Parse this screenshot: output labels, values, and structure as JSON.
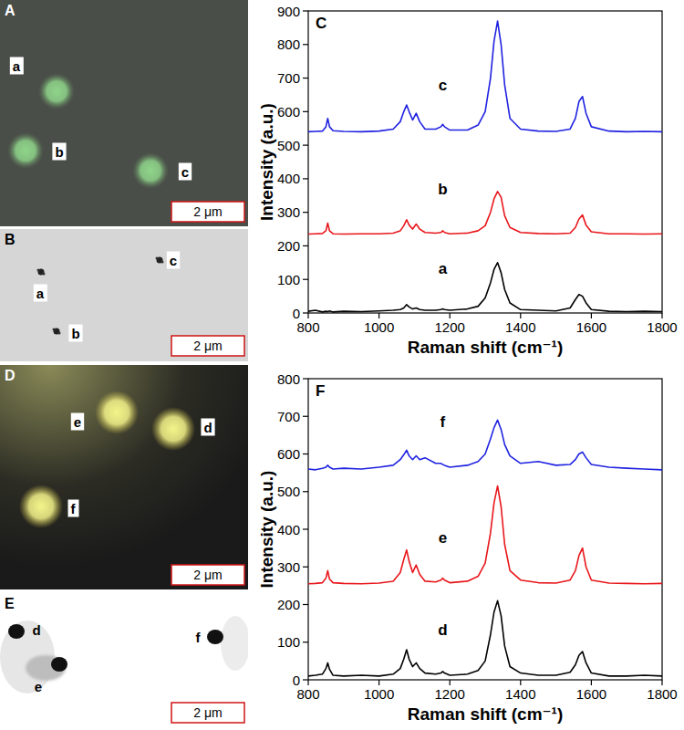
{
  "micrographs": [
    {
      "letter": "A",
      "labels": [
        "a",
        "b",
        "c"
      ],
      "scale_bar": "2 μm"
    },
    {
      "letter": "B",
      "labels": [
        "a",
        "b",
        "c"
      ],
      "scale_bar": "2 μm"
    },
    {
      "letter": "D",
      "labels": [
        "d",
        "e",
        "f"
      ],
      "scale_bar": "2 μm"
    },
    {
      "letter": "E",
      "labels": [
        "d",
        "e",
        "f"
      ],
      "scale_bar": "2 μm"
    }
  ],
  "chart_data": [
    {
      "type": "line",
      "title": "C",
      "x_label": "Raman shift (cm⁻¹)",
      "y_label": "Intensity (a.u.)",
      "x": [
        800,
        820,
        840,
        850,
        855,
        860,
        870,
        900,
        950,
        1000,
        1040,
        1060,
        1070,
        1078,
        1085,
        1095,
        1105,
        1115,
        1130,
        1160,
        1175,
        1180,
        1185,
        1200,
        1250,
        1280,
        1300,
        1315,
        1325,
        1335,
        1345,
        1355,
        1370,
        1400,
        1450,
        1500,
        1540,
        1555,
        1565,
        1575,
        1585,
        1600,
        1650,
        1700,
        1750,
        1800
      ],
      "xlim": [
        800,
        1800
      ],
      "xticks": [
        800,
        1000,
        1200,
        1400,
        1600,
        1800
      ],
      "ylim": [
        0,
        900
      ],
      "yticks": [
        0,
        100,
        200,
        300,
        400,
        500,
        600,
        700,
        800,
        900
      ],
      "series": [
        {
          "name": "a",
          "color": "#000000",
          "values": [
            5,
            8,
            3,
            5,
            4,
            6,
            3,
            5,
            4,
            6,
            8,
            10,
            15,
            25,
            18,
            12,
            15,
            10,
            8,
            8,
            10,
            12,
            10,
            8,
            12,
            20,
            45,
            90,
            130,
            150,
            120,
            70,
            30,
            10,
            8,
            6,
            15,
            40,
            55,
            50,
            30,
            10,
            5,
            4,
            5,
            4
          ]
        },
        {
          "name": "b",
          "color": "#e8161b",
          "values": [
            235,
            236,
            237,
            245,
            268,
            245,
            236,
            235,
            236,
            236,
            238,
            245,
            260,
            278,
            262,
            250,
            265,
            250,
            240,
            238,
            240,
            245,
            240,
            236,
            238,
            245,
            260,
            300,
            340,
            362,
            345,
            290,
            255,
            240,
            237,
            236,
            238,
            255,
            280,
            292,
            262,
            242,
            236,
            236,
            235,
            236
          ]
        },
        {
          "name": "c",
          "color": "#1f22e0",
          "values": [
            540,
            541,
            542,
            555,
            580,
            555,
            543,
            541,
            540,
            542,
            548,
            570,
            600,
            620,
            600,
            575,
            595,
            570,
            548,
            548,
            555,
            562,
            555,
            545,
            545,
            560,
            600,
            700,
            810,
            870,
            800,
            680,
            580,
            548,
            542,
            541,
            548,
            580,
            630,
            645,
            595,
            555,
            542,
            540,
            541,
            540
          ]
        }
      ]
    },
    {
      "type": "line",
      "title": "F",
      "x_label": "Raman shift (cm⁻¹)",
      "y_label": "Intensity (a.u.)",
      "x": [
        800,
        820,
        840,
        850,
        855,
        860,
        870,
        900,
        950,
        1000,
        1040,
        1060,
        1070,
        1078,
        1085,
        1095,
        1105,
        1115,
        1130,
        1160,
        1175,
        1180,
        1185,
        1200,
        1250,
        1280,
        1300,
        1315,
        1325,
        1335,
        1345,
        1355,
        1370,
        1400,
        1450,
        1500,
        1540,
        1555,
        1565,
        1575,
        1585,
        1600,
        1650,
        1700,
        1750,
        1800
      ],
      "xlim": [
        800,
        1800
      ],
      "xticks": [
        800,
        1000,
        1200,
        1400,
        1600,
        1800
      ],
      "ylim": [
        0,
        800
      ],
      "yticks": [
        0,
        100,
        200,
        300,
        400,
        500,
        600,
        700,
        800
      ],
      "series": [
        {
          "name": "d",
          "color": "#000000",
          "values": [
            10,
            12,
            15,
            30,
            45,
            28,
            12,
            10,
            12,
            10,
            15,
            30,
            55,
            80,
            55,
            35,
            45,
            30,
            18,
            15,
            18,
            22,
            18,
            12,
            15,
            25,
            50,
            120,
            180,
            210,
            170,
            90,
            35,
            18,
            12,
            12,
            20,
            40,
            65,
            75,
            45,
            18,
            10,
            10,
            12,
            10
          ]
        },
        {
          "name": "e",
          "color": "#e8161b",
          "values": [
            255,
            256,
            258,
            270,
            290,
            268,
            258,
            256,
            255,
            257,
            262,
            285,
            320,
            345,
            315,
            285,
            305,
            280,
            262,
            260,
            265,
            270,
            265,
            258,
            262,
            275,
            310,
            390,
            470,
            515,
            460,
            360,
            290,
            265,
            258,
            257,
            265,
            290,
            330,
            350,
            300,
            265,
            257,
            256,
            255,
            256
          ]
        },
        {
          "name": "f",
          "color": "#1f22e0",
          "values": [
            560,
            558,
            562,
            565,
            570,
            565,
            560,
            562,
            560,
            565,
            570,
            585,
            598,
            610,
            595,
            585,
            595,
            585,
            590,
            575,
            575,
            572,
            570,
            565,
            570,
            580,
            600,
            640,
            670,
            690,
            665,
            625,
            595,
            575,
            580,
            570,
            572,
            585,
            600,
            605,
            590,
            572,
            565,
            562,
            560,
            558
          ]
        }
      ]
    }
  ]
}
